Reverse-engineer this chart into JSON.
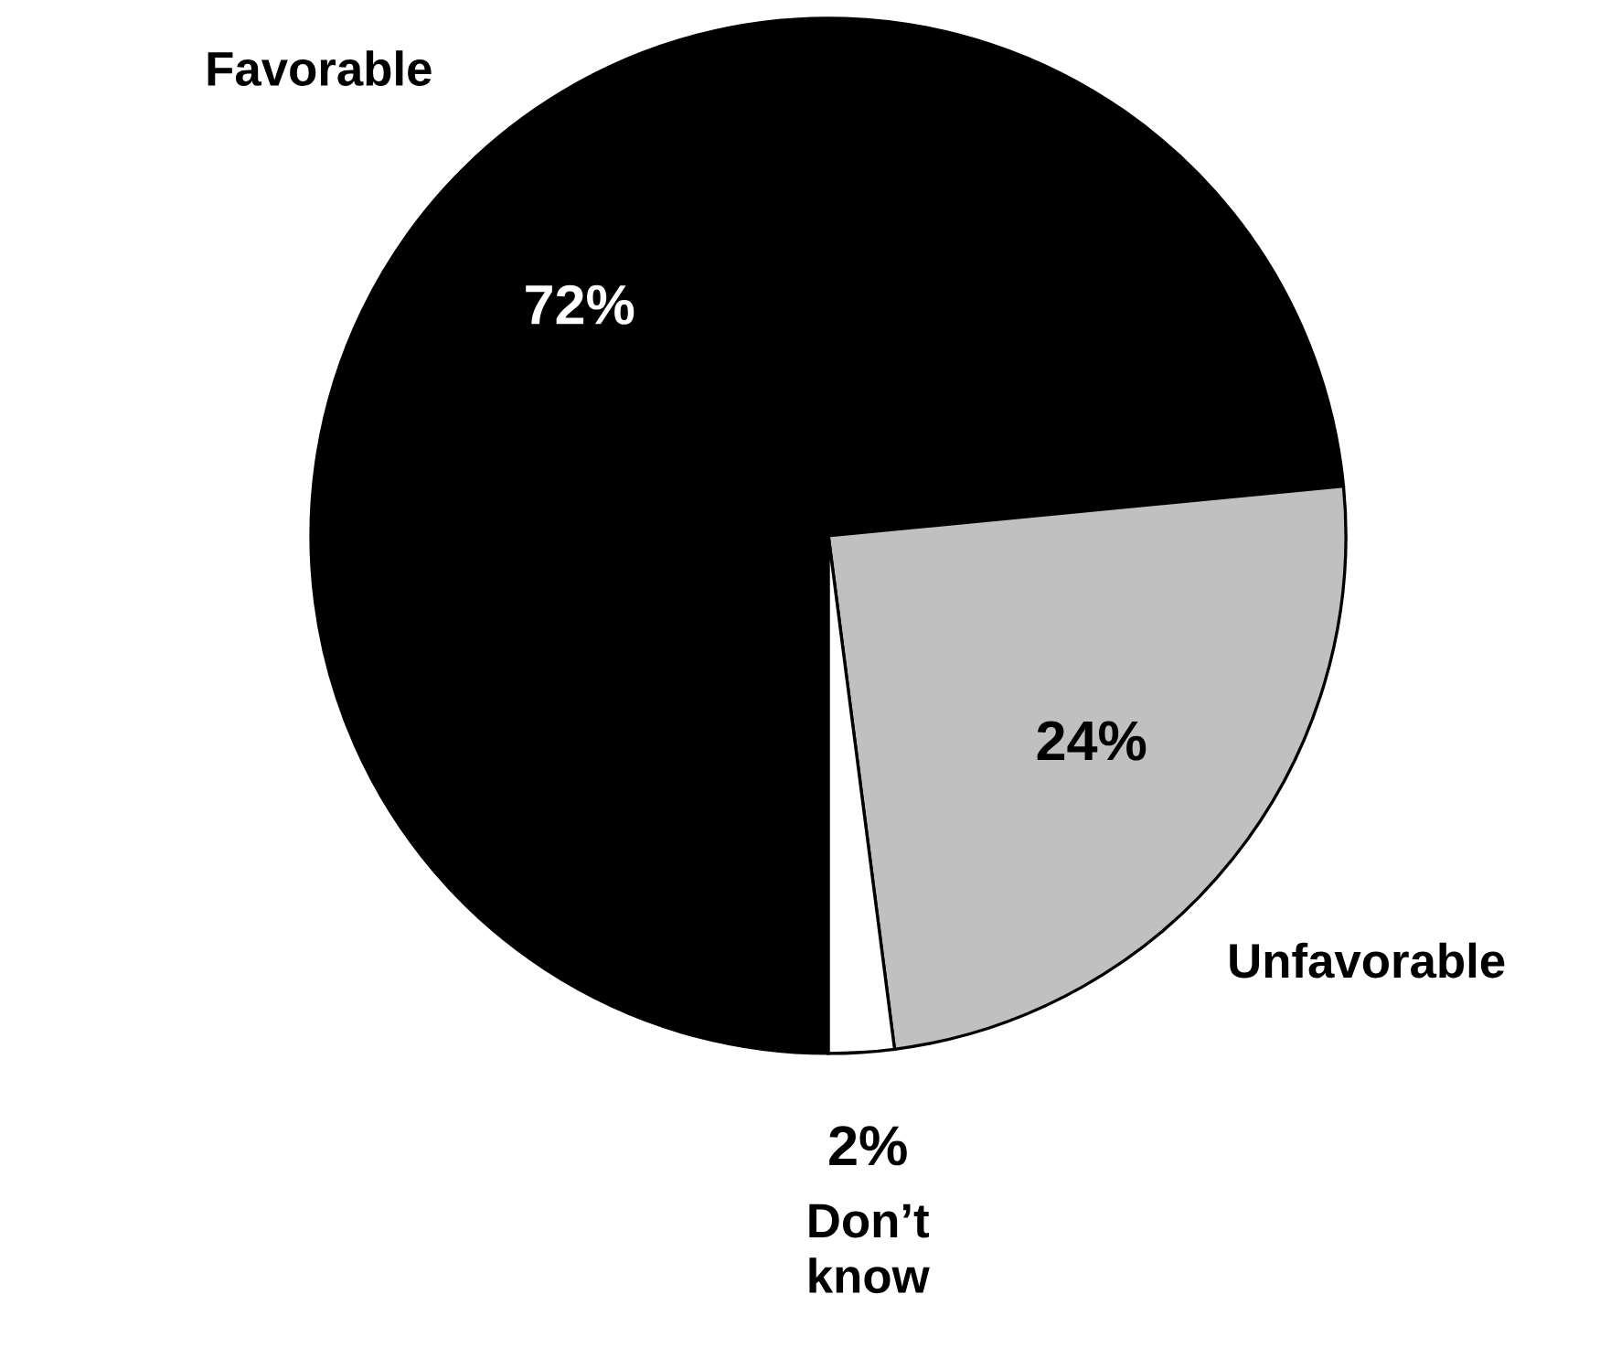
{
  "chart_data": {
    "type": "pie",
    "categories": [
      "Favorable",
      "Unfavorable",
      "Don’t\nknow"
    ],
    "values": [
      72,
      24,
      2
    ],
    "value_labels": [
      "72%",
      "24%",
      "2%"
    ],
    "colors": [
      "#000000",
      "#c0c0c0",
      "#ffffff"
    ]
  }
}
